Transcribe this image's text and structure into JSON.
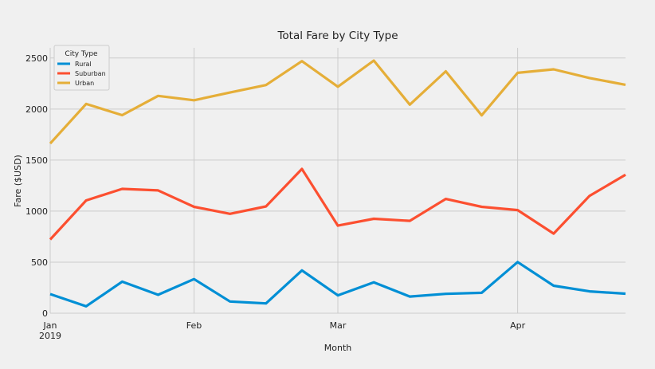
{
  "chart_data": {
    "type": "line",
    "title": "Total Fare by City Type",
    "xlabel": "Month",
    "ylabel": "Fare ($USD)",
    "x": [
      "2019-01-06",
      "2019-01-13",
      "2019-01-20",
      "2019-01-27",
      "2019-02-03",
      "2019-02-10",
      "2019-02-17",
      "2019-02-24",
      "2019-03-03",
      "2019-03-10",
      "2019-03-17",
      "2019-03-24",
      "2019-03-31",
      "2019-04-07",
      "2019-04-14",
      "2019-04-21",
      "2019-04-28"
    ],
    "xlim": [
      "2019-01-06",
      "2019-04-28"
    ],
    "ylim": [
      0,
      2600
    ],
    "yticks": [
      0,
      500,
      1000,
      1500,
      2000,
      2500
    ],
    "xticks": [
      {
        "date": "2019-01-06",
        "label": "Jan",
        "sublabel": "2019"
      },
      {
        "date": "2019-02-03",
        "label": "Feb",
        "sublabel": ""
      },
      {
        "date": "2019-03-03",
        "label": "Mar",
        "sublabel": ""
      },
      {
        "date": "2019-04-07",
        "label": "Apr",
        "sublabel": ""
      }
    ],
    "grid": true,
    "legend": {
      "title": "City Type",
      "position": "top-left"
    },
    "series": [
      {
        "name": "Rural",
        "color": "#008fd5",
        "values": [
          187,
          68,
          309,
          180,
          334,
          115,
          96,
          419,
          175,
          303,
          163,
          190,
          200,
          501,
          269,
          214,
          191
        ]
      },
      {
        "name": "Suburban",
        "color": "#fc4f30",
        "values": [
          722,
          1105,
          1218,
          1203,
          1042,
          974,
          1046,
          1413,
          858,
          925,
          905,
          1120,
          1042,
          1010,
          780,
          1150,
          1356
        ]
      },
      {
        "name": "Urban",
        "color": "#e5ae38",
        "values": [
          1662,
          2050,
          1940,
          2129,
          2086,
          2162,
          2235,
          2470,
          2219,
          2475,
          2043,
          2370,
          1939,
          2355,
          2389,
          2304,
          2238
        ]
      }
    ]
  }
}
